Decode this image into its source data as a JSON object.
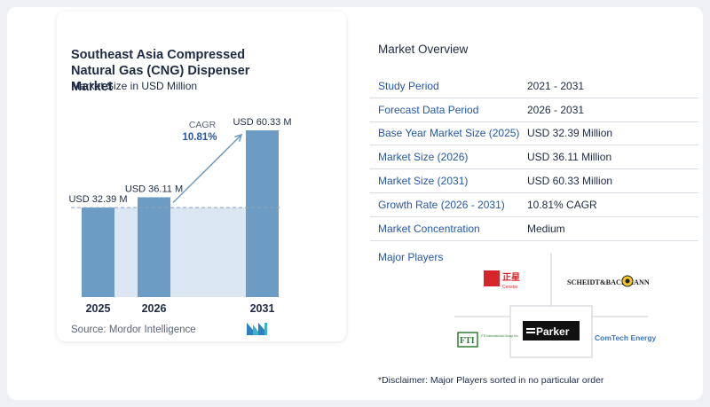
{
  "chart_data": {
    "type": "bar",
    "title": "Southeast Asia Compressed Natural Gas (CNG) Dispenser Market",
    "subtitle": "Market Size in USD Million",
    "categories": [
      "2025",
      "2026",
      "2031"
    ],
    "values": [
      32.39,
      36.11,
      60.33
    ],
    "data_labels": [
      "USD 32.39 M",
      "USD 36.11 M",
      "USD 60.33 M"
    ],
    "cagr_label": "CAGR",
    "cagr_value": "10.81%",
    "colors": {
      "bar": "#6c9bc4",
      "shade": "#dbe7f2",
      "arrow": "#6c9bc4",
      "cagr_value": "#2557a7"
    }
  },
  "source": "Source:  Mordor Intelligence",
  "overview": {
    "title": "Market Overview",
    "rows": [
      {
        "label": "Study Period",
        "value": "2021 - 2031"
      },
      {
        "label": "Forecast Data Period",
        "value": "2026 - 2031"
      },
      {
        "label": "Base Year Market Size (2025)",
        "value": "USD 32.39 Million"
      },
      {
        "label": "Market Size (2026)",
        "value": "USD 36.11 Million"
      },
      {
        "label": "Market Size (2031)",
        "value": "USD 60.33 Million"
      },
      {
        "label": "Growth Rate (2026 - 2031)",
        "value": "10.81% CAGR"
      },
      {
        "label": "Market Concentration",
        "value": "Medium"
      }
    ]
  },
  "players": {
    "title": "Major Players",
    "logos": {
      "censtar_cn": "正星",
      "censtar": "Censtar",
      "scheidt": "SCHEIDT&BACHMANN",
      "fti": "FTI",
      "fti_sub": "FTI International Group Inc.",
      "parker": "Parker",
      "comtech": "ComTech Energy"
    }
  },
  "disclaimer": "*Disclaimer: Major Players sorted in no particular order"
}
